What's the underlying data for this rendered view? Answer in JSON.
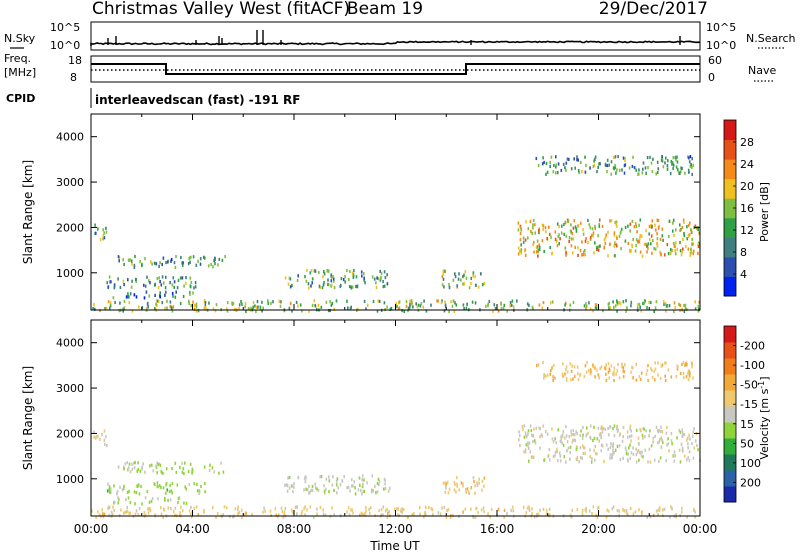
{
  "header": {
    "station": "Christmas Valley West (fitACF)",
    "beam": "Beam 19",
    "date": "29/Dec/2017"
  },
  "top_panels": {
    "nsky_label": "N.Sky",
    "nsky_ticks": [
      "10^5",
      "10^0"
    ],
    "nsearch_label": "N.Search",
    "nsearch_ticks": [
      "10^5",
      "10^0"
    ],
    "freq_label": "Freq.",
    "freq_unit": "[MHz]",
    "freq_ticks": [
      "18",
      "8"
    ],
    "nave_label": "Nave",
    "nave_ticks": [
      "60",
      "0"
    ],
    "cpid_label": "CPID",
    "cpid_text": "interleavedscan (fast) -191 RF"
  },
  "chart_data": [
    {
      "type": "heatmap",
      "title": "",
      "xlabel": "",
      "ylabel": "Slant Range [km]",
      "xlim": [
        0,
        24
      ],
      "ylim": [
        180,
        4500
      ],
      "y_ticks": [
        1000,
        2000,
        3000,
        4000
      ],
      "x_ticks_hours": [
        0,
        4,
        8,
        12,
        16,
        20,
        24
      ],
      "colorbar": {
        "label": "Power [dB]",
        "ticks": [
          "4",
          "8",
          "12",
          "16",
          "20",
          "24",
          "28"
        ],
        "range": [
          0,
          30
        ],
        "colors": [
          "#0022ee",
          "#2b4fb0",
          "#3f7f80",
          "#2ea046",
          "#7fbf3f",
          "#f0c020",
          "#f58a1a",
          "#e8501a",
          "#d41818"
        ]
      },
      "scatter_regions": [
        {
          "t0": 0.0,
          "t1": 0.6,
          "r0": 1750,
          "r1": 2100,
          "value": 12
        },
        {
          "t0": 1.0,
          "t1": 5.3,
          "r0": 1150,
          "r1": 1400,
          "value": 10
        },
        {
          "t0": 0.6,
          "t1": 4.5,
          "r0": 700,
          "r1": 950,
          "value": 11
        },
        {
          "t0": 0.8,
          "t1": 4.0,
          "r0": 480,
          "r1": 620,
          "value": 8
        },
        {
          "t0": 7.6,
          "t1": 11.8,
          "r0": 700,
          "r1": 1100,
          "value": 12
        },
        {
          "t0": 13.8,
          "t1": 15.5,
          "r0": 700,
          "r1": 1100,
          "value": 14
        },
        {
          "t0": 16.8,
          "t1": 24.0,
          "r0": 1400,
          "r1": 2200,
          "value": 18
        },
        {
          "t0": 17.5,
          "t1": 23.8,
          "r0": 3200,
          "r1": 3600,
          "value": 10
        },
        {
          "t0": 0.0,
          "t1": 24.0,
          "r0": 180,
          "r1": 420,
          "value": 14
        }
      ]
    },
    {
      "type": "heatmap",
      "title": "",
      "xlabel": "Time UT",
      "ylabel": "Slant Range [km]",
      "xlim": [
        0,
        24
      ],
      "ylim": [
        180,
        4500
      ],
      "y_ticks": [
        1000,
        2000,
        3000,
        4000
      ],
      "x_tick_labels": [
        "00:00",
        "04:00",
        "08:00",
        "12:00",
        "16:00",
        "20:00",
        "00:00"
      ],
      "colorbar": {
        "label": "Velocity [m s^-1]",
        "ticks": [
          "200",
          "100",
          "50",
          "15",
          "-15",
          "-50",
          "-100",
          "-200"
        ],
        "range": [
          -250,
          250
        ],
        "colors": [
          "#1a2aa8",
          "#2a62a8",
          "#1f7a5a",
          "#2fae3a",
          "#8fd43a",
          "#c8c8c0",
          "#f0c870",
          "#f3a93a",
          "#f07c1a",
          "#e8501a",
          "#d61a1a"
        ]
      },
      "scatter_regions": [
        {
          "t0": 0.0,
          "t1": 0.6,
          "r0": 1750,
          "r1": 2100,
          "value": -20
        },
        {
          "t0": 1.0,
          "t1": 5.3,
          "r0": 1150,
          "r1": 1400,
          "value": 30
        },
        {
          "t0": 0.6,
          "t1": 4.5,
          "r0": 700,
          "r1": 950,
          "value": 40
        },
        {
          "t0": 0.8,
          "t1": 4.0,
          "r0": 480,
          "r1": 620,
          "value": 30
        },
        {
          "t0": 7.6,
          "t1": 11.8,
          "r0": 700,
          "r1": 1100,
          "value": 10
        },
        {
          "t0": 13.8,
          "t1": 15.5,
          "r0": 700,
          "r1": 1100,
          "value": -45
        },
        {
          "t0": 16.8,
          "t1": 24.0,
          "r0": 1400,
          "r1": 2200,
          "value": 0
        },
        {
          "t0": 17.5,
          "t1": 23.8,
          "r0": 3200,
          "r1": 3600,
          "value": -60
        },
        {
          "t0": 0.0,
          "t1": 24.0,
          "r0": 180,
          "r1": 420,
          "value": -40
        }
      ]
    }
  ]
}
